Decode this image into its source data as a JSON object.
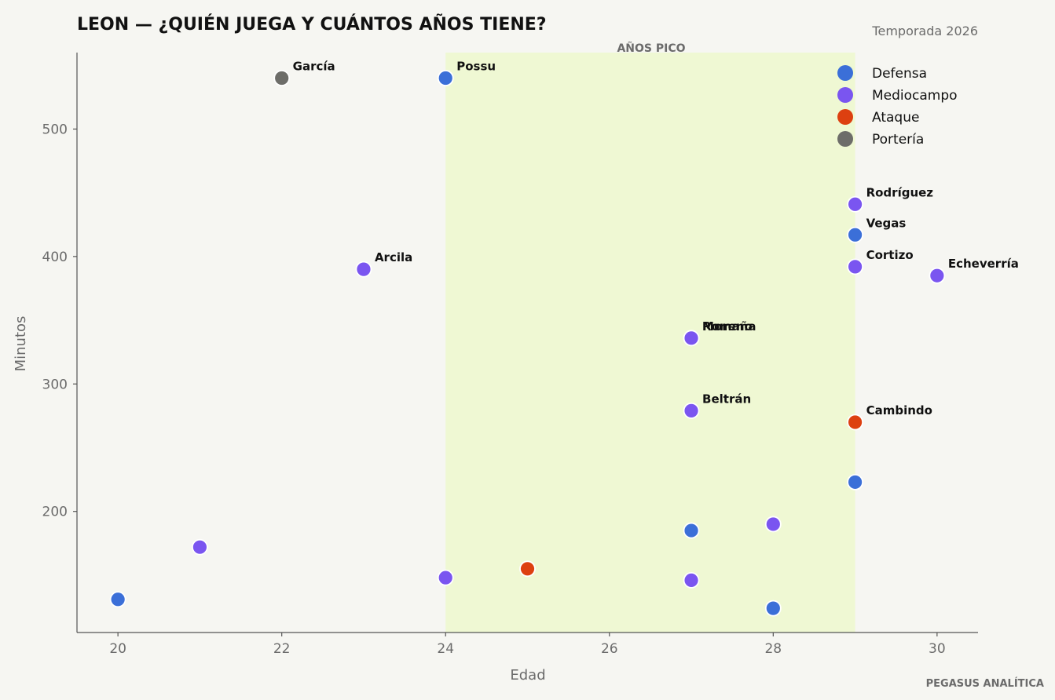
{
  "chart_data": {
    "type": "scatter",
    "title": "LEON — ¿QUIÉN JUEGA Y CUÁNTOS AÑOS TIENE?",
    "subtitle": "Temporada 2026",
    "xlabel": "Edad",
    "ylabel": "Minutos",
    "xlim": [
      19.5,
      30.5
    ],
    "ylim": [
      105,
      560
    ],
    "xticks": [
      20,
      22,
      24,
      26,
      28,
      30
    ],
    "yticks": [
      200,
      300,
      400,
      500
    ],
    "grid": false,
    "legend_position": "top-right",
    "highlight_band": {
      "label": "AÑOS PICO",
      "x_range": [
        24,
        29
      ],
      "color": "#eff8d3"
    },
    "footer": "PEGASUS ANALÍTICA",
    "series": [
      {
        "name": "Defensa",
        "color": "#3b6fd8",
        "points": [
          {
            "x": 24,
            "y": 540,
            "label": "Possu"
          },
          {
            "x": 29,
            "y": 417,
            "label": "Vegas"
          },
          {
            "x": 27,
            "y": 336,
            "label": "Moreno"
          },
          {
            "x": 29,
            "y": 223,
            "label": ""
          },
          {
            "x": 27,
            "y": 185,
            "label": ""
          },
          {
            "x": 20,
            "y": 131,
            "label": ""
          },
          {
            "x": 28,
            "y": 124,
            "label": ""
          }
        ]
      },
      {
        "name": "Mediocampo",
        "color": "#7a55f0",
        "points": [
          {
            "x": 29,
            "y": 441,
            "label": "Rodríguez"
          },
          {
            "x": 23,
            "y": 390,
            "label": "Arcila"
          },
          {
            "x": 29,
            "y": 392,
            "label": "Cortizo"
          },
          {
            "x": 30,
            "y": 385,
            "label": "Echeverría"
          },
          {
            "x": 27,
            "y": 336,
            "label": "Romaña"
          },
          {
            "x": 27,
            "y": 279,
            "label": "Beltrán"
          },
          {
            "x": 28,
            "y": 190,
            "label": ""
          },
          {
            "x": 21,
            "y": 172,
            "label": ""
          },
          {
            "x": 24,
            "y": 148,
            "label": ""
          },
          {
            "x": 27,
            "y": 146,
            "label": ""
          }
        ]
      },
      {
        "name": "Ataque",
        "color": "#dd4010",
        "points": [
          {
            "x": 29,
            "y": 270,
            "label": "Cambindo"
          },
          {
            "x": 25,
            "y": 155,
            "label": ""
          }
        ]
      },
      {
        "name": "Portería",
        "color": "#6d6d69",
        "points": [
          {
            "x": 22,
            "y": 540,
            "label": "García"
          }
        ]
      }
    ]
  }
}
